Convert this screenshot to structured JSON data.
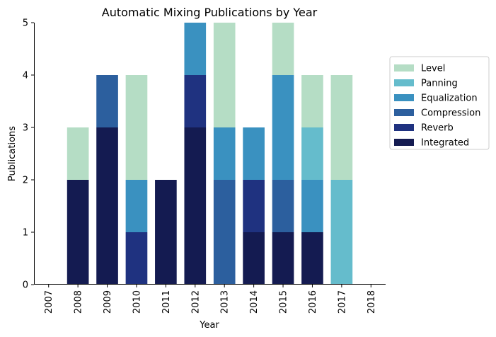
{
  "chart_data": {
    "type": "bar",
    "stacked": true,
    "title": "Automatic Mixing Publications by Year",
    "xlabel": "Year",
    "ylabel": "Publications",
    "categories": [
      "2007",
      "2008",
      "2009",
      "2010",
      "2011",
      "2012",
      "2013",
      "2014",
      "2015",
      "2016",
      "2017",
      "2018"
    ],
    "ylim": [
      0,
      5
    ],
    "yticks": [
      0,
      1,
      2,
      3,
      4,
      5
    ],
    "grid": false,
    "legend_position": "right",
    "series": [
      {
        "name": "Integrated",
        "color": "#141b51",
        "values": [
          0,
          2,
          3,
          0,
          2,
          3,
          0,
          1,
          1,
          1,
          0,
          0
        ]
      },
      {
        "name": "Reverb",
        "color": "#1f3280",
        "values": [
          0,
          0,
          0,
          1,
          0,
          1,
          0,
          1,
          0,
          0,
          0,
          0
        ]
      },
      {
        "name": "Compression",
        "color": "#2c5f9e",
        "values": [
          0,
          0,
          1,
          0,
          0,
          0,
          2,
          0,
          1,
          0,
          0,
          0
        ]
      },
      {
        "name": "Equalization",
        "color": "#3a91c0",
        "values": [
          0,
          0,
          0,
          1,
          0,
          1,
          1,
          1,
          2,
          1,
          0,
          0
        ]
      },
      {
        "name": "Panning",
        "color": "#65bccc",
        "values": [
          0,
          0,
          0,
          0,
          0,
          0,
          0,
          0,
          0,
          1,
          2,
          0
        ]
      },
      {
        "name": "Level",
        "color": "#b5ddc5",
        "values": [
          0,
          1,
          0,
          2,
          0,
          0,
          2,
          0,
          1,
          1,
          2,
          0
        ]
      }
    ],
    "legend_order": [
      "Level",
      "Panning",
      "Equalization",
      "Compression",
      "Reverb",
      "Integrated"
    ]
  }
}
